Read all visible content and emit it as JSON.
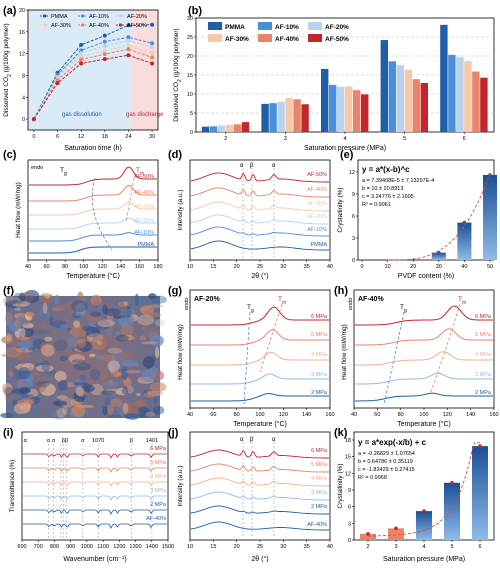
{
  "panels": {
    "a": {
      "letter": "(a)",
      "ylabel": "Dissolved CO",
      "ylabel_sub": "2",
      "ylabel_tail": " (g/100g polymer)",
      "xlabel": "Saturation time (h)",
      "region_left": "gas dissolution",
      "region_right": "gas discharge",
      "xticks": [
        "0",
        "6",
        "12",
        "18",
        "24",
        "30"
      ],
      "yticks": [
        "0",
        "4",
        "8",
        "12",
        "16",
        "20"
      ]
    },
    "b": {
      "letter": "(b)",
      "ylabel": "Dissolved CO",
      "ylabel_sub": "2",
      "ylabel_tail": " (g/100g polymer)",
      "xlabel": "Saturation pressure (MPa)",
      "yticks": [
        "0",
        "5",
        "10",
        "15",
        "20",
        "25",
        "30"
      ]
    },
    "c": {
      "letter": "(c)",
      "ylabel": "Heat flow (mW/mg)",
      "endo": "endo",
      "xlabel": "Temperature (°C)",
      "tg": "T",
      "tg_sub": "g",
      "tm": "T",
      "tm_sub": "m",
      "xticks": [
        "40",
        "60",
        "80",
        "100",
        "120",
        "140",
        "160",
        "180"
      ],
      "curves": [
        "AF-50%",
        "AF-40%",
        "AF-30%",
        "AF-20%",
        "AF-10%",
        "PMMA"
      ]
    },
    "d": {
      "letter": "(d)",
      "ylabel": "Intensity (a.u.)",
      "xlabel": "2θ (°)",
      "peaks": [
        "α",
        "β",
        "α"
      ],
      "xticks": [
        "10",
        "15",
        "20",
        "25",
        "30",
        "35",
        "40"
      ],
      "curves": [
        "AF-50%",
        "AF-40%",
        "AF-30%",
        "AF-20%",
        "AF-10%",
        "PMMA"
      ]
    },
    "e": {
      "letter": "(e)",
      "ylabel": "Crystallinity (%)",
      "xlabel": "PVDF content (%)",
      "eq": "y = a*(x-b)^c",
      "params": [
        "a = 7.39408E-5 ± 7.13297E-4",
        "b = 10 ± 20.8913",
        "c = 3.24776 ± 2.1605",
        "R² = 0.9961"
      ],
      "xticks": [
        "0",
        "10",
        "20",
        "30",
        "40",
        "50"
      ],
      "yticks": [
        "0",
        "3",
        "6",
        "9",
        "12"
      ]
    },
    "f": {
      "letter": "(f)"
    },
    "g": {
      "letter": "(g)",
      "title": "AF-20%",
      "ylabel": "Heat flow (mW/mg)",
      "endo": "endo",
      "xlabel": "Temperature (°C)",
      "tg": "T",
      "tg_sub": "g",
      "tm": "T",
      "tm_sub": "m",
      "xticks": [
        "40",
        "60",
        "80",
        "100",
        "120",
        "140",
        "160"
      ],
      "curves": [
        "6 MPa",
        "5 MPa",
        "4 MPa",
        "3 MPa",
        "2 MPa"
      ]
    },
    "h": {
      "letter": "(h)",
      "title": "AF-40%",
      "ylabel": "Heat flow (mW/mg)",
      "endo": "endo",
      "xlabel": "Temperature (°C)",
      "tg": "T",
      "tg_sub": "g",
      "tm": "T",
      "tm_sub": "m",
      "xticks": [
        "40",
        "60",
        "80",
        "100",
        "120",
        "140",
        "160"
      ],
      "curves": [
        "6 MPa",
        "5 MPa",
        "4 MPa",
        "3 MPa",
        "2 MPa"
      ]
    },
    "i": {
      "letter": "(i)",
      "ylabel": "Transmittance (%)",
      "xlabel": "Wavenumber (cm⁻¹)",
      "bands": [
        "α",
        "α",
        "α",
        "β",
        "β",
        "α",
        "1070",
        "β",
        "1401"
      ],
      "xticks": [
        "600",
        "700",
        "800",
        "900",
        "1000",
        "1100",
        "1200",
        "1300",
        "1400",
        "1500"
      ],
      "curves": [
        "6 MPa",
        "5 MPa",
        "4 MPa",
        "3 MPa",
        "2 MPa",
        "AF-40%"
      ]
    },
    "j": {
      "letter": "(j)",
      "ylabel": "Intensity (a.u.)",
      "xlabel": "2θ (°)",
      "peaks": [
        "α",
        "β",
        "α"
      ],
      "xticks": [
        "10",
        "15",
        "20",
        "25",
        "30",
        "35",
        "40"
      ],
      "curves": [
        "6 MPa",
        "5 MPa",
        "4 MPa",
        "3 MPa",
        "2 MPa",
        "AF-40%"
      ]
    },
    "k": {
      "letter": "(k)",
      "ylabel": "Crystallinity (%)",
      "xlabel": "Saturation pressure (MPa)",
      "eq": "y = a*exp(-x/b) + c",
      "params": [
        "a = -0.26829 ± 1.07654",
        "b = 0.64786 ± 0.35119",
        "c = -1.82429 ± 0.27415",
        "R² = 0.9968"
      ],
      "xticks": [
        "2",
        "3",
        "4",
        "5",
        "6"
      ],
      "yticks": [
        "0",
        "3",
        "6",
        "9",
        "12",
        "15",
        "18"
      ]
    }
  },
  "colors": {
    "PMMA": "#1f5fa8",
    "AF-10%": "#4a90d9",
    "AF-20%": "#b9d3ee",
    "AF-30%": "#f7c9a9",
    "AF-40%": "#e9836a",
    "AF-50%": "#c1272d"
  },
  "chart_data": [
    {
      "type": "line",
      "panel": "a",
      "xlabel": "Saturation time (h)",
      "ylabel": "Dissolved CO2 (g/100g polymer)",
      "x": [
        0,
        6,
        12,
        18,
        24,
        30
      ],
      "xlim": [
        -1.5,
        31.5
      ],
      "ylim": [
        -2,
        20
      ],
      "series": [
        {
          "name": "PMMA",
          "values": [
            0,
            8.5,
            13.6,
            15.3,
            17.2,
            17.3
          ]
        },
        {
          "name": "AF-10%",
          "values": [
            0,
            8.1,
            12.6,
            14.2,
            15.0,
            13.9
          ]
        },
        {
          "name": "AF-20%",
          "values": [
            0,
            7.7,
            12.1,
            13.4,
            14.4,
            13.2
          ]
        },
        {
          "name": "AF-30%",
          "values": [
            0,
            7.4,
            11.5,
            12.5,
            13.5,
            12.1
          ]
        },
        {
          "name": "AF-40%",
          "values": [
            0,
            7.1,
            10.9,
            11.9,
            12.8,
            11.3
          ]
        },
        {
          "name": "AF-50%",
          "values": [
            0,
            6.6,
            10.2,
            11.0,
            11.7,
            10.2
          ]
        }
      ]
    },
    {
      "type": "bar",
      "panel": "b",
      "xlabel": "Saturation pressure (MPa)",
      "ylabel": "Dissolved CO2 (g/100g polymer)",
      "categories": [
        "2",
        "3",
        "4",
        "5",
        "6"
      ],
      "ylim": [
        0,
        30
      ],
      "series": [
        {
          "name": "PMMA",
          "values": [
            1.4,
            7.4,
            16.6,
            24.2,
            28.2
          ]
        },
        {
          "name": "AF-10%",
          "values": [
            1.5,
            7.6,
            12.4,
            18.6,
            20.3
          ]
        },
        {
          "name": "AF-20%",
          "values": [
            1.7,
            8.0,
            11.9,
            17.6,
            19.7
          ]
        },
        {
          "name": "AF-30%",
          "values": [
            1.9,
            9.0,
            12.0,
            16.4,
            18.7
          ]
        },
        {
          "name": "AF-40%",
          "values": [
            2.0,
            8.6,
            11.0,
            13.9,
            15.9
          ]
        },
        {
          "name": "AF-50%",
          "values": [
            2.6,
            7.3,
            9.9,
            12.9,
            14.3
          ]
        }
      ]
    },
    {
      "type": "bar",
      "panel": "e",
      "xlabel": "PVDF content (%)",
      "ylabel": "Crystallinity (%)",
      "categories": [
        "10",
        "20",
        "30",
        "40",
        "50"
      ],
      "values": [
        0.0,
        0.0,
        1.0,
        5.1,
        11.6
      ],
      "ylim": [
        0,
        12
      ],
      "xlim": [
        0,
        50
      ]
    },
    {
      "type": "bar",
      "panel": "k",
      "xlabel": "Saturation pressure (MPa)",
      "ylabel": "Crystallinity (%)",
      "categories": [
        "2",
        "3",
        "4",
        "5",
        "6"
      ],
      "values": [
        1.1,
        2.1,
        5.2,
        10.3,
        16.9
      ],
      "ylim": [
        0,
        18
      ]
    }
  ]
}
